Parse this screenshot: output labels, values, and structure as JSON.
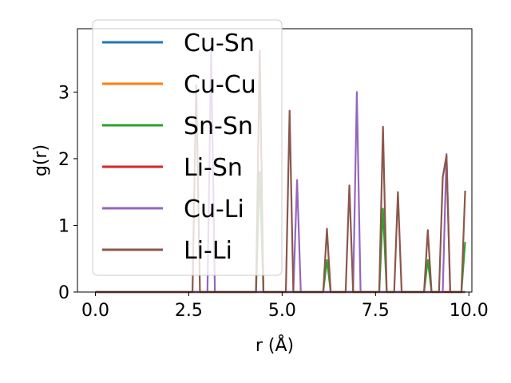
{
  "chart_data": {
    "type": "line",
    "title": "",
    "xlabel": "r (Å)",
    "ylabel": "g(r)",
    "xlim": [
      -0.48,
      10.08
    ],
    "ylim": [
      0,
      3.95
    ],
    "xticks": [
      0.0,
      2.5,
      5.0,
      7.5,
      10.0
    ],
    "xtick_labels": [
      "0.0",
      "2.5",
      "5.0",
      "7.5",
      "10.0"
    ],
    "yticks": [
      0,
      1,
      2,
      3
    ],
    "ytick_labels": [
      "0",
      "1",
      "2",
      "3"
    ],
    "grid": false,
    "legend_position": "upper-left",
    "series": [
      {
        "name": "Cu-Sn",
        "color": "#1f77b4",
        "points": [
          [
            0,
            0
          ],
          [
            9.9,
            0
          ]
        ]
      },
      {
        "name": "Cu-Cu",
        "color": "#ff7f0e",
        "points": [
          [
            0,
            0
          ],
          [
            9.9,
            0
          ]
        ]
      },
      {
        "name": "Sn-Sn",
        "color": "#2ca02c",
        "points": [
          [
            0,
            0
          ],
          [
            4.3,
            0
          ],
          [
            4.4,
            1.8
          ],
          [
            4.5,
            0
          ],
          [
            6.1,
            0
          ],
          [
            6.2,
            0.48
          ],
          [
            6.3,
            0
          ],
          [
            7.6,
            0
          ],
          [
            7.7,
            1.25
          ],
          [
            7.8,
            0
          ],
          [
            8.8,
            0
          ],
          [
            8.9,
            0.48
          ],
          [
            9.0,
            0
          ],
          [
            9.8,
            0
          ],
          [
            9.9,
            0.75
          ]
        ]
      },
      {
        "name": "Li-Sn",
        "color": "#d62728",
        "points": [
          [
            0,
            0
          ],
          [
            9.9,
            0
          ]
        ]
      },
      {
        "name": "Cu-Li",
        "color": "#9467bd",
        "points": [
          [
            0,
            0
          ],
          [
            3.0,
            0
          ],
          [
            3.1,
            3.6
          ],
          [
            3.2,
            0
          ],
          [
            5.3,
            0
          ],
          [
            5.4,
            1.68
          ],
          [
            5.5,
            0
          ],
          [
            6.9,
            0
          ],
          [
            7.0,
            3.0
          ],
          [
            7.1,
            0
          ],
          [
            9.3,
            0
          ],
          [
            9.4,
            2.07
          ],
          [
            9.5,
            0
          ],
          [
            9.9,
            0
          ]
        ]
      },
      {
        "name": "Li-Li",
        "color": "#8c564b",
        "points": [
          [
            0,
            0
          ],
          [
            2.6,
            0
          ],
          [
            2.7,
            3.1
          ],
          [
            2.8,
            0
          ],
          [
            4.3,
            0
          ],
          [
            4.4,
            3.62
          ],
          [
            4.5,
            0
          ],
          [
            5.1,
            0
          ],
          [
            5.2,
            2.72
          ],
          [
            5.3,
            0
          ],
          [
            6.1,
            0
          ],
          [
            6.2,
            0.95
          ],
          [
            6.3,
            0
          ],
          [
            6.7,
            0
          ],
          [
            6.8,
            1.6
          ],
          [
            6.9,
            0
          ],
          [
            7.6,
            0
          ],
          [
            7.7,
            2.48
          ],
          [
            7.8,
            0
          ],
          [
            8.0,
            0
          ],
          [
            8.1,
            1.5
          ],
          [
            8.2,
            0
          ],
          [
            8.8,
            0
          ],
          [
            8.9,
            0.93
          ],
          [
            9.0,
            0
          ],
          [
            9.2,
            0
          ],
          [
            9.3,
            1.72
          ],
          [
            9.4,
            2.05
          ],
          [
            9.5,
            0
          ],
          [
            9.8,
            0
          ],
          [
            9.9,
            1.52
          ]
        ]
      }
    ]
  }
}
